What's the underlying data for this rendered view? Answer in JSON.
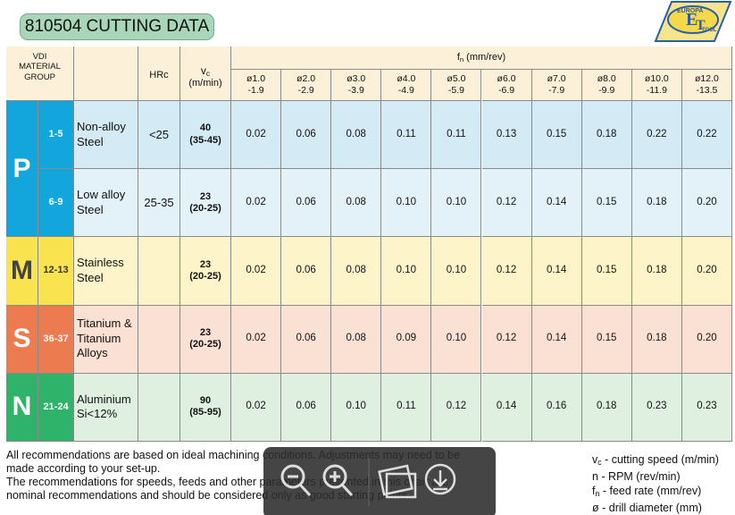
{
  "title": "810504 CUTTING DATA",
  "logo": {
    "top": "EUROPA",
    "bottom": "TOOL",
    "mark1": "E",
    "mark2": "T"
  },
  "header": {
    "group": [
      "VDI",
      "MATERIAL",
      "GROUP"
    ],
    "hrc": "HRc",
    "vc": {
      "symbol": "v",
      "sub": "c",
      "unit": "(m/min)"
    },
    "fn": {
      "symbol": "f",
      "sub": "n",
      "unit": "(mm/rev)"
    },
    "diameters": [
      [
        "ø1.0",
        "-1.9"
      ],
      [
        "ø2.0",
        "-2.9"
      ],
      [
        "ø3.0",
        "-3.9"
      ],
      [
        "ø4.0",
        "-4.9"
      ],
      [
        "ø5.0",
        "-5.9"
      ],
      [
        "ø6.0",
        "-6.9"
      ],
      [
        "ø7.0",
        "-7.9"
      ],
      [
        "ø8.0",
        "-9.9"
      ],
      [
        "ø10.0",
        "-11.9"
      ],
      [
        "ø12.0",
        "-13.5"
      ]
    ]
  },
  "groups": [
    {
      "letter": "P",
      "rows": [
        {
          "range": "1-5",
          "material": [
            "Non-alloy",
            "Steel"
          ],
          "hrc": "<25",
          "vc": "40",
          "vc_range": "(35-45)",
          "feeds": [
            "0.02",
            "0.06",
            "0.08",
            "0.11",
            "0.11",
            "0.13",
            "0.15",
            "0.18",
            "0.22",
            "0.22"
          ]
        },
        {
          "range": "6-9",
          "material": [
            "Low alloy",
            "Steel"
          ],
          "hrc": "25-35",
          "vc": "23",
          "vc_range": "(20-25)",
          "feeds": [
            "0.02",
            "0.06",
            "0.08",
            "0.10",
            "0.10",
            "0.12",
            "0.14",
            "0.15",
            "0.18",
            "0.20"
          ]
        }
      ]
    },
    {
      "letter": "M",
      "rows": [
        {
          "range": "12-13",
          "material": [
            "Stainless",
            "Steel"
          ],
          "vc": "23",
          "vc_range": "(20-25)",
          "feeds": [
            "0.02",
            "0.06",
            "0.08",
            "0.10",
            "0.10",
            "0.12",
            "0.14",
            "0.15",
            "0.18",
            "0.20"
          ]
        }
      ]
    },
    {
      "letter": "S",
      "rows": [
        {
          "range": "36-37",
          "material": [
            "Titanium &",
            "Titanium",
            "Alloys"
          ],
          "vc": "23",
          "vc_range": "(20-25)",
          "feeds": [
            "0.02",
            "0.06",
            "0.08",
            "0.09",
            "0.10",
            "0.12",
            "0.14",
            "0.15",
            "0.18",
            "0.20"
          ]
        }
      ]
    },
    {
      "letter": "N",
      "rows": [
        {
          "range": "21-24",
          "material": [
            "Aluminium",
            "Si<12%"
          ],
          "vc": "90",
          "vc_range": "(85-95)",
          "feeds": [
            "0.02",
            "0.06",
            "0.10",
            "0.11",
            "0.12",
            "0.14",
            "0.16",
            "0.18",
            "0.23",
            "0.23"
          ]
        }
      ]
    }
  ],
  "notes": [
    "All recommendations are based on ideal machining conditions. Adjustments may need to be",
    "made according to your set-up.",
    "The recommendations for speeds, feeds and other parameters presented in this chart are",
    "nominal recommendations and should be considered only as good starting points."
  ],
  "legend": [
    {
      "symbol": "v",
      "sub": "c",
      "text": " - cutting speed (m/min)"
    },
    {
      "symbol": "n - RPM (rev/min)"
    },
    {
      "symbol": "f",
      "sub": "n",
      "text": " - feed rate (mm/rev)"
    },
    {
      "symbol": "ø - drill diameter (mm)"
    }
  ]
}
